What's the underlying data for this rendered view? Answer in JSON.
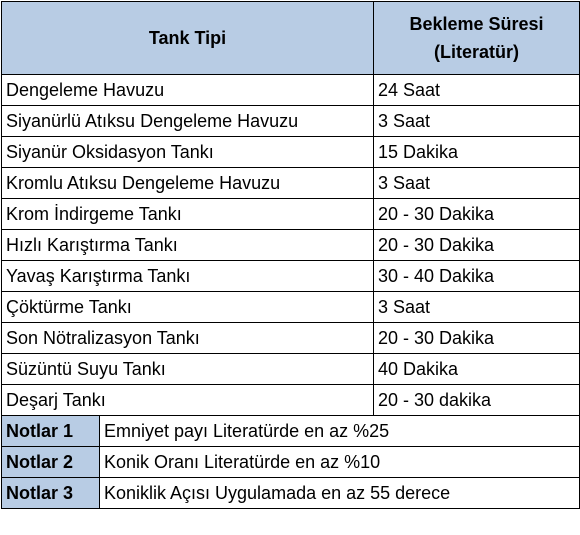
{
  "header": {
    "col1": "Tank Tipi",
    "col2_line1": "Bekleme Süresi",
    "col2_line2": "(Literatür)"
  },
  "rows": [
    {
      "tank": "Dengeleme Havuzu",
      "sure": "24 Saat"
    },
    {
      "tank": "Siyanürlü Atıksu Dengeleme Havuzu",
      "sure": "3 Saat"
    },
    {
      "tank": "Siyanür Oksidasyon Tankı",
      "sure": "15 Dakika"
    },
    {
      "tank": "Kromlu Atıksu Dengeleme Havuzu",
      "sure": "3 Saat"
    },
    {
      "tank": "Krom İndirgeme Tankı",
      "sure": "20 - 30 Dakika"
    },
    {
      "tank": "Hızlı Karıştırma Tankı",
      "sure": "20 - 30 Dakika"
    },
    {
      "tank": "Yavaş Karıştırma Tankı",
      "sure": "30 - 40 Dakika"
    },
    {
      "tank": "Çöktürme Tankı",
      "sure": "3 Saat"
    },
    {
      "tank": "Son Nötralizasyon Tankı",
      "sure": "20 - 30 Dakika"
    },
    {
      "tank": "Süzüntü Suyu Tankı",
      "sure": "40 Dakika"
    },
    {
      "tank": "Deşarj Tankı",
      "sure": "20 - 30 dakika"
    }
  ],
  "notes": [
    {
      "label": "Notlar 1",
      "text": "Emniyet payı Literatürde en az %25"
    },
    {
      "label": "Notlar 2",
      "text": "Konik Oranı Literatürde en az %10"
    },
    {
      "label": "Notlar 3",
      "text": "Koniklik Açısı Uygulamada en az 55 derece"
    }
  ],
  "colors": {
    "header_bg": "#b8cce4",
    "border": "#000000"
  }
}
